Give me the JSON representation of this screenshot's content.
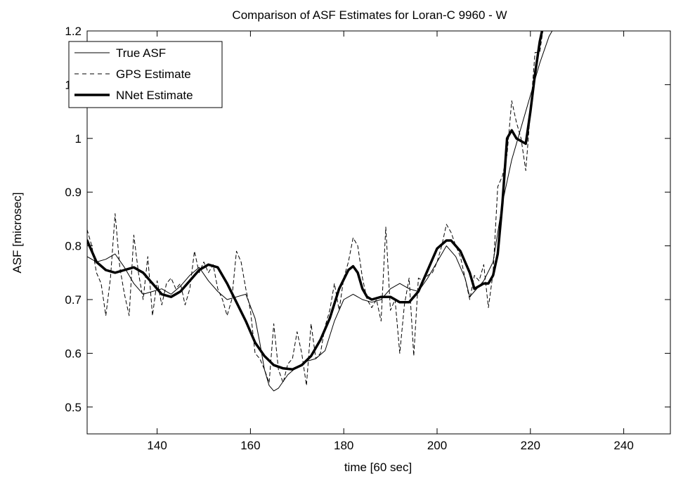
{
  "chart_data": {
    "type": "line",
    "title": "Comparison of ASF Estimates for Loran-C 9960 - W",
    "xlabel": "time [60 sec]",
    "ylabel": "ASF [microsec]",
    "xlim": [
      125,
      250
    ],
    "ylim": [
      0.45,
      1.2
    ],
    "xticks": [
      140,
      160,
      180,
      200,
      220,
      240
    ],
    "yticks": [
      0.5,
      0.6,
      0.7,
      0.8,
      0.9,
      1,
      1.1,
      1.2
    ],
    "xtick_labels": [
      "140",
      "160",
      "180",
      "200",
      "220",
      "240"
    ],
    "ytick_labels": [
      "0.5",
      "0.6",
      "0.7",
      "0.8",
      "0.9",
      "1",
      "1.1",
      "1.2"
    ],
    "grid": false,
    "legend_position": "top-left",
    "series": [
      {
        "name": "True ASF",
        "style": "thin-solid",
        "color": "#000000",
        "points": [
          [
            125,
            0.78
          ],
          [
            127,
            0.77
          ],
          [
            129,
            0.775
          ],
          [
            131,
            0.785
          ],
          [
            133,
            0.76
          ],
          [
            135,
            0.73
          ],
          [
            137,
            0.71
          ],
          [
            139,
            0.715
          ],
          [
            141,
            0.72
          ],
          [
            143,
            0.71
          ],
          [
            145,
            0.725
          ],
          [
            147,
            0.745
          ],
          [
            149,
            0.76
          ],
          [
            151,
            0.735
          ],
          [
            153,
            0.715
          ],
          [
            155,
            0.7
          ],
          [
            157,
            0.705
          ],
          [
            159,
            0.71
          ],
          [
            161,
            0.665
          ],
          [
            162,
            0.62
          ],
          [
            163,
            0.57
          ],
          [
            164,
            0.54
          ],
          [
            165,
            0.53
          ],
          [
            166,
            0.535
          ],
          [
            168,
            0.56
          ],
          [
            170,
            0.575
          ],
          [
            172,
            0.585
          ],
          [
            174,
            0.59
          ],
          [
            176,
            0.605
          ],
          [
            178,
            0.66
          ],
          [
            180,
            0.7
          ],
          [
            182,
            0.71
          ],
          [
            184,
            0.7
          ],
          [
            186,
            0.695
          ],
          [
            188,
            0.7
          ],
          [
            190,
            0.72
          ],
          [
            192,
            0.73
          ],
          [
            194,
            0.72
          ],
          [
            196,
            0.715
          ],
          [
            198,
            0.74
          ],
          [
            200,
            0.77
          ],
          [
            202,
            0.8
          ],
          [
            204,
            0.78
          ],
          [
            206,
            0.74
          ],
          [
            207,
            0.705
          ],
          [
            208,
            0.715
          ],
          [
            210,
            0.735
          ],
          [
            212,
            0.77
          ],
          [
            214,
            0.88
          ],
          [
            216,
            0.96
          ],
          [
            217,
            0.99
          ],
          [
            218,
            1.02
          ],
          [
            220,
            1.08
          ],
          [
            222,
            1.14
          ],
          [
            224,
            1.19
          ],
          [
            226,
            1.22
          ]
        ]
      },
      {
        "name": "GPS Estimate",
        "style": "dashed",
        "color": "#000000",
        "points": [
          [
            125,
            0.83
          ],
          [
            126,
            0.8
          ],
          [
            127,
            0.75
          ],
          [
            128,
            0.73
          ],
          [
            129,
            0.67
          ],
          [
            130,
            0.74
          ],
          [
            131,
            0.86
          ],
          [
            132,
            0.76
          ],
          [
            133,
            0.71
          ],
          [
            134,
            0.67
          ],
          [
            135,
            0.82
          ],
          [
            136,
            0.75
          ],
          [
            137,
            0.7
          ],
          [
            138,
            0.78
          ],
          [
            139,
            0.67
          ],
          [
            140,
            0.735
          ],
          [
            141,
            0.69
          ],
          [
            142,
            0.73
          ],
          [
            143,
            0.74
          ],
          [
            144,
            0.72
          ],
          [
            145,
            0.73
          ],
          [
            146,
            0.69
          ],
          [
            147,
            0.72
          ],
          [
            148,
            0.79
          ],
          [
            149,
            0.75
          ],
          [
            150,
            0.77
          ],
          [
            151,
            0.75
          ],
          [
            152,
            0.765
          ],
          [
            153,
            0.72
          ],
          [
            154,
            0.7
          ],
          [
            155,
            0.67
          ],
          [
            156,
            0.7
          ],
          [
            157,
            0.79
          ],
          [
            158,
            0.77
          ],
          [
            159,
            0.72
          ],
          [
            160,
            0.68
          ],
          [
            161,
            0.6
          ],
          [
            162,
            0.59
          ],
          [
            163,
            0.57
          ],
          [
            164,
            0.545
          ],
          [
            165,
            0.655
          ],
          [
            166,
            0.57
          ],
          [
            167,
            0.545
          ],
          [
            168,
            0.58
          ],
          [
            169,
            0.59
          ],
          [
            170,
            0.64
          ],
          [
            171,
            0.6
          ],
          [
            172,
            0.54
          ],
          [
            173,
            0.655
          ],
          [
            174,
            0.59
          ],
          [
            175,
            0.6
          ],
          [
            176,
            0.65
          ],
          [
            177,
            0.68
          ],
          [
            178,
            0.73
          ],
          [
            179,
            0.68
          ],
          [
            180,
            0.74
          ],
          [
            181,
            0.77
          ],
          [
            182,
            0.815
          ],
          [
            183,
            0.8
          ],
          [
            184,
            0.74
          ],
          [
            185,
            0.7
          ],
          [
            186,
            0.685
          ],
          [
            187,
            0.7
          ],
          [
            188,
            0.66
          ],
          [
            189,
            0.835
          ],
          [
            190,
            0.68
          ],
          [
            191,
            0.7
          ],
          [
            192,
            0.6
          ],
          [
            193,
            0.69
          ],
          [
            194,
            0.74
          ],
          [
            195,
            0.595
          ],
          [
            196,
            0.74
          ],
          [
            197,
            0.735
          ],
          [
            198,
            0.745
          ],
          [
            199,
            0.75
          ],
          [
            200,
            0.77
          ],
          [
            201,
            0.8
          ],
          [
            202,
            0.84
          ],
          [
            203,
            0.825
          ],
          [
            204,
            0.8
          ],
          [
            205,
            0.78
          ],
          [
            206,
            0.74
          ],
          [
            207,
            0.7
          ],
          [
            208,
            0.745
          ],
          [
            209,
            0.735
          ],
          [
            210,
            0.765
          ],
          [
            211,
            0.685
          ],
          [
            212,
            0.75
          ],
          [
            213,
            0.91
          ],
          [
            214,
            0.93
          ],
          [
            215,
            0.97
          ],
          [
            216,
            1.07
          ],
          [
            217,
            1.03
          ],
          [
            218,
            1.0
          ],
          [
            219,
            0.94
          ],
          [
            220,
            1.05
          ],
          [
            221,
            1.16
          ],
          [
            222,
            1.16
          ],
          [
            223,
            1.22
          ]
        ]
      },
      {
        "name": "NNet Estimate",
        "style": "thick-solid",
        "color": "#000000",
        "points": [
          [
            125,
            0.81
          ],
          [
            127,
            0.77
          ],
          [
            129,
            0.755
          ],
          [
            131,
            0.75
          ],
          [
            133,
            0.755
          ],
          [
            135,
            0.76
          ],
          [
            137,
            0.75
          ],
          [
            139,
            0.73
          ],
          [
            141,
            0.71
          ],
          [
            143,
            0.705
          ],
          [
            145,
            0.715
          ],
          [
            147,
            0.735
          ],
          [
            149,
            0.755
          ],
          [
            151,
            0.765
          ],
          [
            153,
            0.76
          ],
          [
            155,
            0.73
          ],
          [
            157,
            0.695
          ],
          [
            159,
            0.66
          ],
          [
            161,
            0.62
          ],
          [
            163,
            0.595
          ],
          [
            165,
            0.578
          ],
          [
            167,
            0.572
          ],
          [
            169,
            0.57
          ],
          [
            171,
            0.578
          ],
          [
            173,
            0.595
          ],
          [
            175,
            0.625
          ],
          [
            177,
            0.665
          ],
          [
            179,
            0.72
          ],
          [
            181,
            0.755
          ],
          [
            182,
            0.762
          ],
          [
            183,
            0.75
          ],
          [
            184,
            0.72
          ],
          [
            185,
            0.705
          ],
          [
            186,
            0.7
          ],
          [
            188,
            0.705
          ],
          [
            190,
            0.705
          ],
          [
            192,
            0.695
          ],
          [
            194,
            0.695
          ],
          [
            196,
            0.715
          ],
          [
            198,
            0.755
          ],
          [
            200,
            0.795
          ],
          [
            202,
            0.81
          ],
          [
            203,
            0.81
          ],
          [
            205,
            0.79
          ],
          [
            207,
            0.75
          ],
          [
            208,
            0.72
          ],
          [
            209,
            0.725
          ],
          [
            210,
            0.73
          ],
          [
            211,
            0.73
          ],
          [
            212,
            0.745
          ],
          [
            213,
            0.785
          ],
          [
            214,
            0.88
          ],
          [
            215,
            1.0
          ],
          [
            216,
            1.015
          ],
          [
            217,
            1.0
          ],
          [
            218,
            0.995
          ],
          [
            219,
            0.99
          ],
          [
            220,
            1.05
          ],
          [
            221,
            1.12
          ],
          [
            222,
            1.18
          ],
          [
            223,
            1.22
          ]
        ]
      }
    ]
  }
}
